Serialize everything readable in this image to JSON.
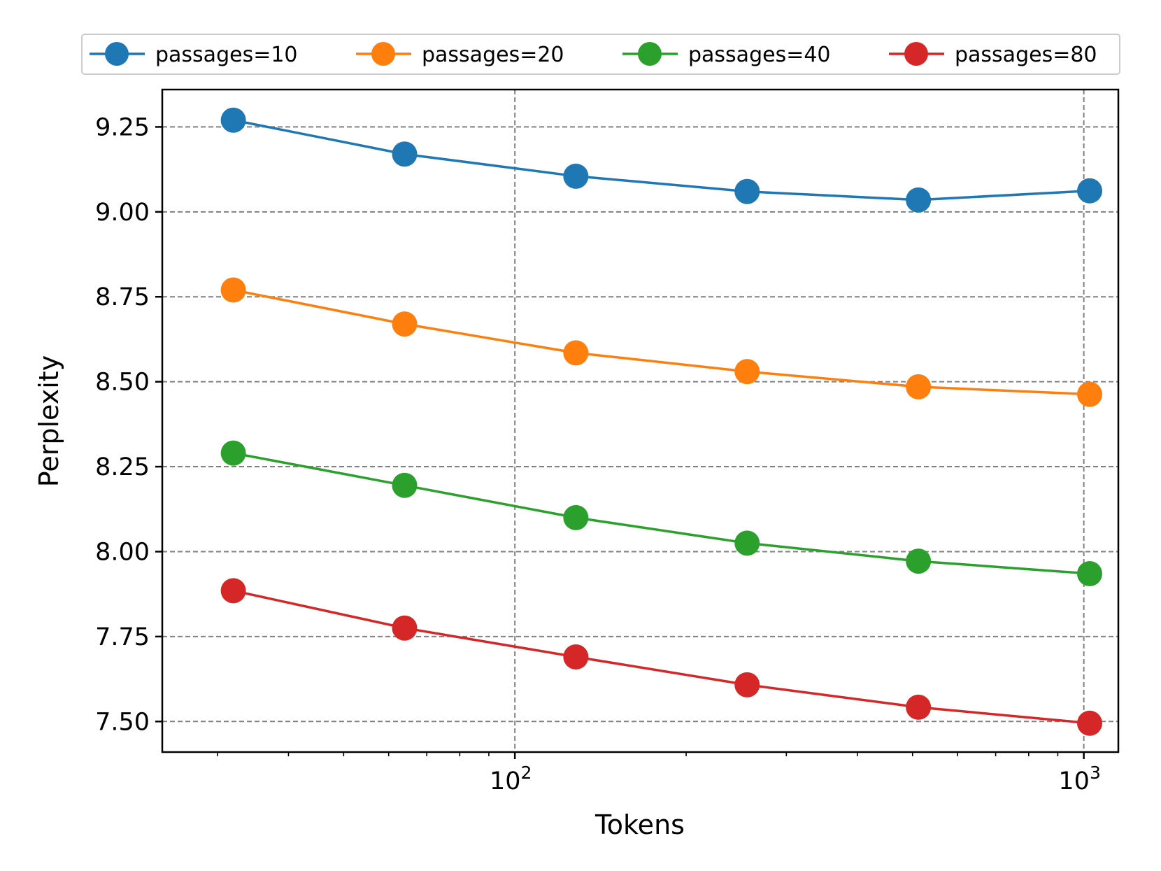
{
  "chart_data": {
    "type": "line",
    "title": "",
    "xlabel": "Tokens",
    "ylabel": "Perplexity",
    "x_scale": "log",
    "x": [
      32,
      64,
      128,
      256,
      512,
      1024
    ],
    "xlim": [
      24,
      1150
    ],
    "ylim": [
      7.41,
      9.36
    ],
    "x_ticks": [
      {
        "value": 100,
        "base": "10",
        "exp": "2"
      },
      {
        "value": 1000,
        "base": "10",
        "exp": "3"
      }
    ],
    "y_ticks": [
      {
        "value": 7.5,
        "label": "7.50"
      },
      {
        "value": 7.75,
        "label": "7.75"
      },
      {
        "value": 8.0,
        "label": "8.00"
      },
      {
        "value": 8.25,
        "label": "8.25"
      },
      {
        "value": 8.5,
        "label": "8.50"
      },
      {
        "value": 8.75,
        "label": "8.75"
      },
      {
        "value": 9.0,
        "label": "9.00"
      },
      {
        "value": 9.25,
        "label": "9.25"
      }
    ],
    "grid": true,
    "grid_style": "dashed",
    "legend_position": "top, above plot",
    "series": [
      {
        "name": "passages=10",
        "color": "#1f77b4",
        "values": [
          9.27,
          9.17,
          9.105,
          9.06,
          9.035,
          9.062
        ]
      },
      {
        "name": "passages=20",
        "color": "#ff7f0e",
        "values": [
          8.77,
          8.67,
          8.585,
          8.53,
          8.485,
          8.463
        ]
      },
      {
        "name": "passages=40",
        "color": "#2ca02c",
        "values": [
          8.29,
          8.195,
          8.1,
          8.025,
          7.972,
          7.935
        ]
      },
      {
        "name": "passages=80",
        "color": "#d62728",
        "values": [
          7.885,
          7.775,
          7.69,
          7.608,
          7.542,
          7.495
        ]
      }
    ]
  }
}
